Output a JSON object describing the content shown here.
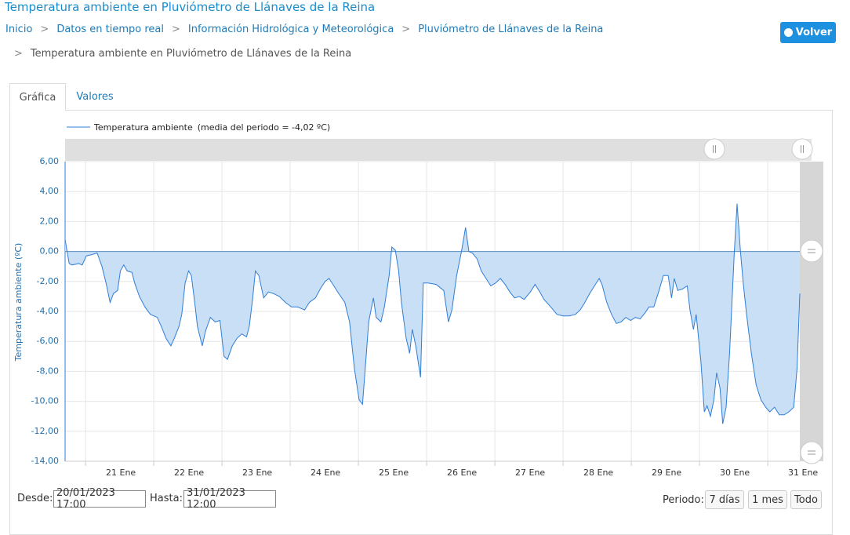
{
  "header": {
    "title": "Temperatura ambiente en Pluviómetro de Llánaves de la Reina",
    "breadcrumbs": [
      "Inicio",
      "Datos en tiempo real",
      "Información Hidrológica y Meteorológica",
      "Pluviómetro de Llánaves de la Reina",
      "Temperatura ambiente en Pluviómetro de Llánaves de la Reina"
    ],
    "back_button": "Volver"
  },
  "tabs": [
    "Gráfica",
    "Valores"
  ],
  "chart_data": {
    "type": "area",
    "y_label": "Temperatura ambiente (ºC)",
    "legend_note": "(media del periodo = -4,02 ºC)",
    "xlim": [
      20.7,
      31.47
    ],
    "xticks": [
      {
        "value": 21,
        "label": "21 Ene"
      },
      {
        "value": 22,
        "label": "22 Ene"
      },
      {
        "value": 23,
        "label": "23 Ene"
      },
      {
        "value": 24,
        "label": "24 Ene"
      },
      {
        "value": 25,
        "label": "25 Ene"
      },
      {
        "value": 26,
        "label": "26 Ene"
      },
      {
        "value": 27,
        "label": "27 Ene"
      },
      {
        "value": 28,
        "label": "28 Ene"
      },
      {
        "value": 29,
        "label": "29 Ene"
      },
      {
        "value": 30,
        "label": "30 Ene"
      },
      {
        "value": 31,
        "label": "31 Ene"
      }
    ],
    "ylim": [
      -14,
      6
    ],
    "yticks": [
      {
        "value": 6,
        "label": "6,00"
      },
      {
        "value": 4,
        "label": "4,00"
      },
      {
        "value": 2,
        "label": "2,00"
      },
      {
        "value": 0,
        "label": "0,00"
      },
      {
        "value": -2,
        "label": "-2,00"
      },
      {
        "value": -4,
        "label": "-4,00"
      },
      {
        "value": -6,
        "label": "-6,00"
      },
      {
        "value": -8,
        "label": "-8,00"
      },
      {
        "value": -10,
        "label": "-10,00"
      },
      {
        "value": -12,
        "label": "-12,00"
      },
      {
        "value": -14,
        "label": "-14,00"
      }
    ],
    "grid": true,
    "x": [
      20.7,
      20.76,
      20.8,
      20.9,
      20.95,
      21.01,
      21.1,
      21.17,
      21.24,
      21.3,
      21.36,
      21.41,
      21.47,
      21.51,
      21.56,
      21.61,
      21.68,
      21.72,
      21.79,
      21.87,
      21.95,
      22.05,
      22.11,
      22.18,
      22.25,
      22.3,
      22.37,
      22.41,
      22.46,
      22.51,
      22.55,
      22.6,
      22.64,
      22.71,
      22.76,
      22.83,
      22.9,
      22.97,
      23.03,
      23.08,
      23.15,
      23.22,
      23.29,
      23.36,
      23.4,
      23.45,
      23.49,
      23.54,
      23.61,
      23.68,
      23.75,
      23.84,
      23.93,
      24.02,
      24.11,
      24.21,
      24.28,
      24.37,
      24.44,
      24.51,
      24.57,
      24.64,
      24.71,
      24.8,
      24.87,
      24.94,
      25.01,
      25.06,
      25.1,
      25.15,
      25.22,
      25.26,
      25.33,
      25.38,
      25.45,
      25.49,
      25.54,
      25.59,
      25.63,
      25.7,
      25.75,
      25.79,
      25.84,
      25.91,
      25.95,
      26.02,
      26.14,
      26.25,
      26.32,
      26.37,
      26.44,
      26.51,
      26.57,
      26.62,
      26.67,
      26.74,
      26.8,
      26.87,
      26.94,
      27.01,
      27.08,
      27.15,
      27.22,
      27.29,
      27.36,
      27.43,
      27.52,
      27.59,
      27.66,
      27.72,
      27.82,
      27.91,
      28.0,
      28.09,
      28.18,
      28.25,
      28.32,
      28.39,
      28.46,
      28.53,
      28.57,
      28.64,
      28.71,
      28.78,
      28.85,
      28.92,
      28.99,
      29.06,
      29.13,
      29.2,
      29.26,
      29.33,
      29.4,
      29.47,
      29.54,
      29.59,
      29.63,
      29.68,
      29.75,
      29.82,
      29.86,
      29.91,
      29.95,
      30.02,
      30.07,
      30.11,
      30.16,
      30.21,
      30.25,
      30.3,
      30.34,
      30.39,
      30.44,
      30.51,
      30.55,
      30.6,
      30.64,
      30.69,
      30.76,
      30.83,
      30.9,
      30.97,
      31.03,
      31.1,
      31.17,
      31.24,
      31.31,
      31.38,
      31.43,
      31.47
    ],
    "series": [
      {
        "name": "Temperatura ambiente",
        "color": "#2f7ed8",
        "fill": "#c8dff5",
        "values": [
          0.8,
          -0.8,
          -0.9,
          -0.8,
          -0.9,
          -0.3,
          -0.2,
          -0.1,
          -1.0,
          -2.1,
          -3.4,
          -2.8,
          -2.6,
          -1.3,
          -0.9,
          -1.3,
          -1.4,
          -2.1,
          -3.0,
          -3.7,
          -4.2,
          -4.4,
          -5.0,
          -5.8,
          -6.3,
          -5.8,
          -5.0,
          -4.2,
          -2.1,
          -1.3,
          -1.6,
          -3.4,
          -5.0,
          -6.3,
          -5.3,
          -4.4,
          -4.7,
          -4.6,
          -7.0,
          -7.2,
          -6.3,
          -5.8,
          -5.5,
          -5.7,
          -5.0,
          -3.1,
          -1.3,
          -1.6,
          -3.1,
          -2.7,
          -2.8,
          -3.0,
          -3.4,
          -3.7,
          -3.7,
          -3.9,
          -3.4,
          -3.1,
          -2.5,
          -2.0,
          -1.8,
          -2.3,
          -2.8,
          -3.4,
          -4.7,
          -7.8,
          -9.9,
          -10.2,
          -7.8,
          -4.7,
          -3.1,
          -4.4,
          -4.7,
          -3.7,
          -1.6,
          0.3,
          0.1,
          -1.3,
          -3.4,
          -5.8,
          -6.8,
          -5.2,
          -6.3,
          -8.4,
          -2.1,
          -2.1,
          -2.2,
          -2.6,
          -4.7,
          -3.9,
          -1.6,
          0.0,
          1.6,
          0.0,
          -0.1,
          -0.5,
          -1.3,
          -1.8,
          -2.3,
          -2.1,
          -1.8,
          -2.2,
          -2.7,
          -3.1,
          -3.0,
          -3.2,
          -2.7,
          -2.2,
          -2.7,
          -3.2,
          -3.7,
          -4.2,
          -4.3,
          -4.3,
          -4.2,
          -3.9,
          -3.4,
          -2.8,
          -2.3,
          -1.8,
          -2.2,
          -3.4,
          -4.2,
          -4.8,
          -4.7,
          -4.4,
          -4.6,
          -4.4,
          -4.5,
          -4.1,
          -3.7,
          -3.7,
          -2.7,
          -1.6,
          -1.6,
          -3.1,
          -1.8,
          -2.6,
          -2.5,
          -2.3,
          -3.9,
          -5.2,
          -4.2,
          -7.3,
          -10.7,
          -10.3,
          -11.0,
          -9.9,
          -8.1,
          -9.1,
          -11.5,
          -10.4,
          -6.8,
          0.0,
          3.2,
          0.0,
          -2.1,
          -4.2,
          -6.8,
          -8.9,
          -9.9,
          -10.4,
          -10.7,
          -10.4,
          -10.9,
          -10.9,
          -10.7,
          -10.4,
          -7.8,
          -2.8
        ]
      }
    ]
  },
  "controls": {
    "from_label": "Desde:",
    "from_value": "20/01/2023 17:00",
    "to_label": "Hasta:",
    "to_value": "31/01/2023 12:00",
    "period_label": "Periodo:",
    "period_buttons": [
      "7 días",
      "1 mes",
      "Todo"
    ]
  }
}
